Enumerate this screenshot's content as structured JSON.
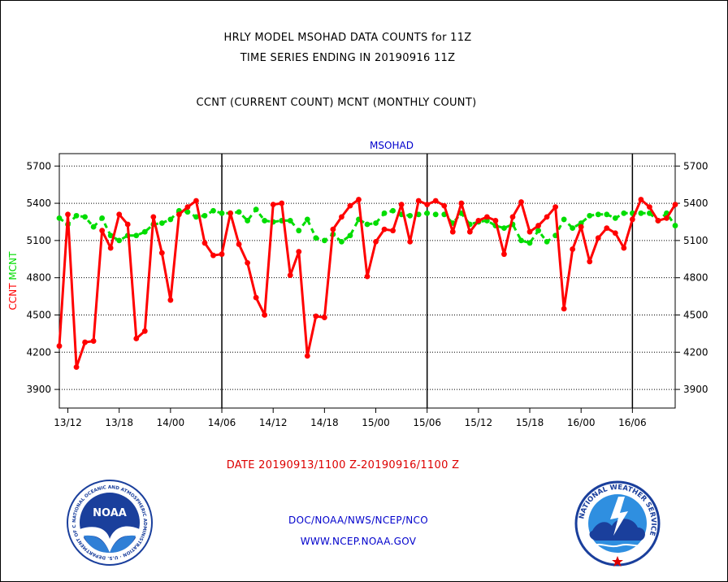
{
  "header": {
    "title_line1": "HRLY MODEL MSOHAD DATA COUNTS for 11Z",
    "title_line2": "TIME SERIES ENDING IN 20190916 11Z",
    "subtitle": "CCNT (CURRENT COUNT) MCNT (MONTHLY COUNT)"
  },
  "footer": {
    "date_range": "DATE 20190913/1100 Z-20190916/1100 Z",
    "org": "DOC/NOAA/NWS/NCEP/NCO",
    "url": "WWW.NCEP.NOAA.GOV"
  },
  "logos": {
    "noaa_text": "NOAA",
    "noaa_ring": "NATIONAL OCEANIC AND ATMOSPHERIC ADMINISTRATION · U.S. DEPARTMENT OF COMMERCE",
    "nws_ring": "NATIONAL WEATHER SERVICE"
  },
  "colors": {
    "ccnt": "#ff0000",
    "mcnt": "#00dd00",
    "label_blue": "#0000cc",
    "footer_red": "#dd0000"
  },
  "chart_data": {
    "type": "line",
    "title": "MSOHAD",
    "ylabel_left": [
      "CCNT",
      "MCNT"
    ],
    "y_ticks": [
      3900,
      4200,
      4500,
      4800,
      5100,
      5400,
      5700
    ],
    "ylim": [
      3750,
      5800
    ],
    "x_tick_labels": [
      "13/12",
      "13/18",
      "14/00",
      "14/06",
      "14/12",
      "14/18",
      "15/00",
      "15/06",
      "15/12",
      "15/18",
      "16/00",
      "16/06"
    ],
    "x_tick_hours": [
      1,
      7,
      13,
      19,
      25,
      31,
      37,
      43,
      49,
      55,
      61,
      67
    ],
    "day_boundary_hours": [
      19,
      43,
      67
    ],
    "x_start": "2019-09-13 11Z",
    "grid": true,
    "series": [
      {
        "name": "CCNT",
        "color": "#ff0000",
        "style": "solid",
        "values": [
          4250,
          5310,
          4080,
          4280,
          4290,
          5180,
          5040,
          5310,
          5230,
          4310,
          4370,
          5290,
          5000,
          4620,
          5310,
          5370,
          5420,
          5080,
          4980,
          4990,
          5320,
          5070,
          4920,
          4640,
          4500,
          5390,
          5400,
          4820,
          5010,
          4170,
          4490,
          4480,
          5190,
          5290,
          5380,
          5430,
          4810,
          5090,
          5190,
          5180,
          5390,
          5090,
          5420,
          5390,
          5420,
          5380,
          5170,
          5400,
          5170,
          5260,
          5290,
          5260,
          4990,
          5290,
          5410,
          5170,
          5220,
          5290,
          5370,
          4550,
          5030,
          5210,
          4930,
          5120,
          5200,
          5160,
          5040,
          5270,
          5430,
          5370,
          5260,
          5280,
          5390
        ]
      },
      {
        "name": "MCNT",
        "color": "#00dd00",
        "style": "dashed",
        "values": [
          5280,
          5230,
          5300,
          5290,
          5210,
          5280,
          5140,
          5100,
          5140,
          5140,
          5170,
          5230,
          5240,
          5270,
          5340,
          5330,
          5290,
          5300,
          5340,
          5320,
          5320,
          5330,
          5260,
          5350,
          5260,
          5250,
          5260,
          5260,
          5180,
          5270,
          5120,
          5100,
          5150,
          5090,
          5140,
          5270,
          5230,
          5240,
          5320,
          5340,
          5310,
          5300,
          5310,
          5320,
          5310,
          5310,
          5240,
          5320,
          5230,
          5250,
          5260,
          5220,
          5200,
          5230,
          5100,
          5080,
          5180,
          5090,
          5140,
          5270,
          5200,
          5240,
          5300,
          5310,
          5310,
          5280,
          5320,
          5320,
          5320,
          5320,
          5260,
          5320,
          5220
        ]
      }
    ]
  }
}
